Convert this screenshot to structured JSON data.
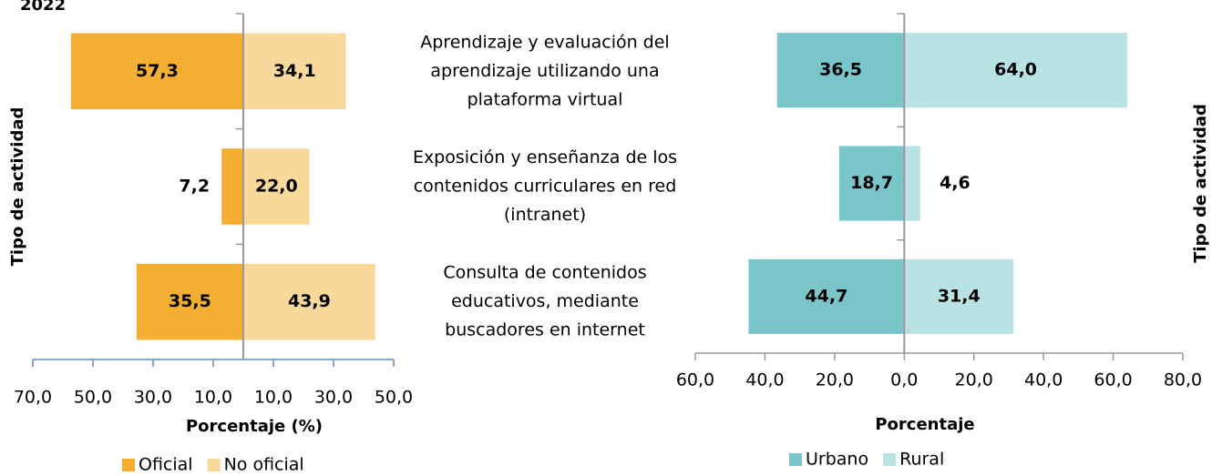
{
  "chart_data": [
    {
      "type": "butterfly",
      "title": "2022",
      "ylabel": "Tipo de actividad",
      "xlabel": "Porcentaje (%)",
      "categories": [
        [
          "Aprendizaje y evaluación del",
          "aprendizaje utilizando una",
          "plataforma virtual"
        ],
        [
          "Exposición y enseñanza de los",
          "contenidos curriculares en red",
          "(intranet)"
        ],
        [
          "Consulta de contenidos",
          "educativos, mediante",
          "buscadores en internet"
        ]
      ],
      "series": [
        {
          "name": "Oficial",
          "color": "#f4ae32",
          "side": "left",
          "values": [
            57.3,
            7.2,
            35.5
          ],
          "value_labels": [
            "57,3",
            "7,2",
            "35,5"
          ]
        },
        {
          "name": "No oficial",
          "color": "#f9d89b",
          "side": "right",
          "values": [
            34.1,
            22.0,
            43.9
          ],
          "value_labels": [
            "34,1",
            "22,0",
            "43,9"
          ]
        }
      ],
      "xlim": [
        -70,
        50
      ],
      "xticks": [
        {
          "value": -70,
          "label": "70,0"
        },
        {
          "value": -50,
          "label": "50,0"
        },
        {
          "value": -30,
          "label": "30,0"
        },
        {
          "value": -10,
          "label": "10,0"
        },
        {
          "value": 10,
          "label": "10,0"
        },
        {
          "value": 30,
          "label": "30,0"
        },
        {
          "value": 50,
          "label": "50,0"
        }
      ],
      "axis_color": "#5b8fc7"
    },
    {
      "type": "butterfly",
      "ylabel": "Tipo de actividad",
      "xlabel": "Porcentaje",
      "series": [
        {
          "name": "Urbano",
          "color": "#79c5ca",
          "side": "left",
          "values": [
            36.5,
            18.7,
            44.7
          ],
          "value_labels": [
            "36,5",
            "18,7",
            "44,7"
          ]
        },
        {
          "name": "Rural",
          "color": "#b9e2e5",
          "side": "right",
          "values": [
            64.0,
            4.6,
            31.4
          ],
          "value_labels": [
            "64,0",
            "4,6",
            "31,4"
          ]
        }
      ],
      "xlim": [
        -60,
        80
      ],
      "xticks": [
        {
          "value": -60,
          "label": "60,0"
        },
        {
          "value": -40,
          "label": "40,0"
        },
        {
          "value": -20,
          "label": "20,0"
        },
        {
          "value": 0,
          "label": "0,0"
        },
        {
          "value": 20,
          "label": "20,0"
        },
        {
          "value": 40,
          "label": "40,0"
        },
        {
          "value": 60,
          "label": "60,0"
        },
        {
          "value": 80,
          "label": "80,0"
        }
      ],
      "axis_color": "#999999"
    }
  ]
}
